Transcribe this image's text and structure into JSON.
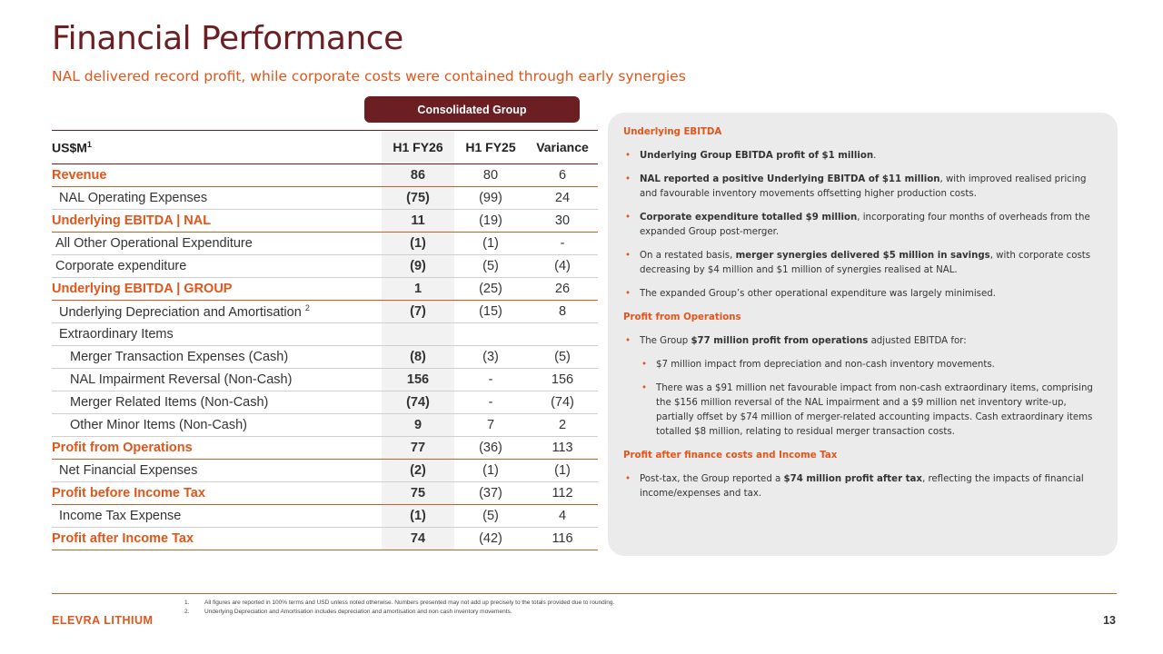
{
  "header": {
    "title": "Financial Performance",
    "subtitle": "NAL delivered record profit, while corporate costs were contained through early synergies"
  },
  "table": {
    "group_header": "Consolidated Group",
    "col_label": "US$M",
    "col_label_sup": "1",
    "columns": [
      "H1 FY26",
      "H1 FY25",
      "Variance"
    ],
    "rows": [
      {
        "label": "Revenue",
        "sup": "",
        "v": [
          "86",
          "80",
          "6"
        ]
      },
      {
        "label": "NAL Operating Expenses",
        "sup": "",
        "v": [
          "(75)",
          "(99)",
          "24"
        ]
      },
      {
        "label": "Underlying EBITDA | NAL",
        "sup": "",
        "v": [
          "11",
          "(19)",
          "30"
        ]
      },
      {
        "label": "All Other Operational Expenditure",
        "sup": "",
        "v": [
          "(1)",
          "(1)",
          "-"
        ]
      },
      {
        "label": "Corporate expenditure",
        "sup": "",
        "v": [
          "(9)",
          "(5)",
          "(4)"
        ]
      },
      {
        "label": "Underlying EBITDA | GROUP",
        "sup": "",
        "v": [
          "1",
          "(25)",
          "26"
        ]
      },
      {
        "label": "Underlying Depreciation and Amortisation",
        "sup": "2",
        "v": [
          "(7)",
          "(15)",
          "8"
        ]
      },
      {
        "label": "Extraordinary Items",
        "sup": "",
        "v": [
          "",
          "",
          ""
        ]
      },
      {
        "label": "Merger Transaction Expenses (Cash)",
        "sup": "",
        "v": [
          "(8)",
          "(3)",
          "(5)"
        ]
      },
      {
        "label": "NAL Impairment Reversal (Non-Cash)",
        "sup": "",
        "v": [
          "156",
          "-",
          "156"
        ]
      },
      {
        "label": "Merger Related Items (Non-Cash)",
        "sup": "",
        "v": [
          "(74)",
          "-",
          "(74)"
        ]
      },
      {
        "label": "Other Minor Items (Non-Cash)",
        "sup": "",
        "v": [
          "9",
          "7",
          "2"
        ]
      },
      {
        "label": "Profit from Operations",
        "sup": "",
        "v": [
          "77",
          "(36)",
          "113"
        ]
      },
      {
        "label": "Net Financial Expenses",
        "sup": "",
        "v": [
          "(2)",
          "(1)",
          "(1)"
        ]
      },
      {
        "label": "Profit before Income Tax",
        "sup": "",
        "v": [
          "75",
          "(37)",
          "112"
        ]
      },
      {
        "label": "Income Tax Expense",
        "sup": "",
        "v": [
          "(1)",
          "(5)",
          "4"
        ]
      },
      {
        "label": "Profit after Income Tax",
        "sup": "",
        "v": [
          "74",
          "(42)",
          "116"
        ]
      }
    ]
  },
  "commentary": {
    "s1_heading": "Underlying EBITDA",
    "b1_bold": "Underlying Group EBITDA profit of $1 million",
    "b1_rest": ".",
    "b2_bold": "NAL reported a positive Underlying EBITDA of $11 million",
    "b2_rest": ", with improved realised pricing and favourable inventory movements offsetting higher production costs.",
    "b3_bold": "Corporate expenditure totalled $9 million",
    "b3_rest": ", incorporating four months of overheads from the expanded Group post-merger.",
    "b4_pre": "On a restated basis, ",
    "b4_bold": "merger synergies delivered $5 million in savings",
    "b4_rest": ", with corporate costs decreasing by $4 million and $1 million of synergies realised at NAL.",
    "b5": "The expanded Group’s other operational expenditure was largely minimised.",
    "s2_heading": "Profit from Operations",
    "b6_pre": "The Group ",
    "b6_bold": "$77 million profit from operations",
    "b6_rest": " adjusted EBITDA for:",
    "b7": "$7 million impact from depreciation and non-cash inventory movements.",
    "b8": "There was a $91 million net favourable impact from non-cash extraordinary items, comprising the $156 million reversal of the NAL impairment and a $9 million net inventory write-up, partially offset by $74 million of merger-related accounting impacts. Cash extraordinary items totalled $8 million, relating to residual merger transaction costs.",
    "s3_heading": "Profit after finance costs and Income Tax",
    "b9_pre": "Post-tax, the Group reported a ",
    "b9_bold": "$74 million profit after tax",
    "b9_rest": ", reflecting the impacts of financial income/expenses and tax."
  },
  "footer": {
    "fn1_num": "1.",
    "fn1": "All figures are reported in 100% terms and USD unless noted otherwise. Numbers presented may not add up precisely to the totals provided due to rounding.",
    "fn2_num": "2.",
    "fn2": "Underlying Depreciation and Amortisation includes depreciation and amortisation and non cash inventory movements.",
    "brand": "ELEVRA LITHIUM",
    "page": "13"
  }
}
